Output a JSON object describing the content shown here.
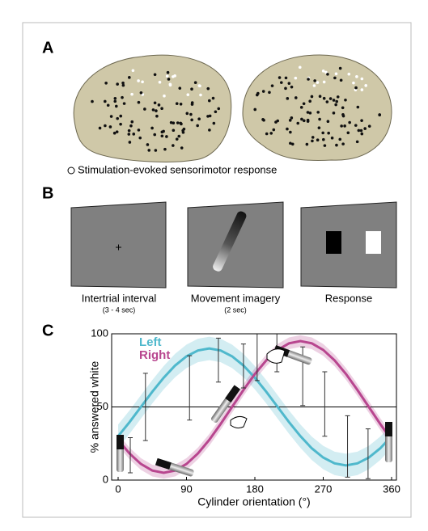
{
  "panels": {
    "A": {
      "label": "A",
      "legend": "Stimulation-evoked sensorimotor response"
    },
    "B": {
      "label": "B",
      "screens": [
        {
          "caption": "Intertrial interval",
          "duration": "(3 - 4 sec)"
        },
        {
          "caption": "Movement imagery",
          "duration": "(2 sec)"
        },
        {
          "caption": "Response"
        }
      ]
    },
    "C": {
      "label": "C"
    }
  },
  "chart_data": {
    "type": "line",
    "xlabel": "Cylinder orientation (°)",
    "ylabel": "% answered white",
    "x": [
      0,
      15,
      30,
      45,
      60,
      75,
      90,
      105,
      120,
      135,
      150,
      165,
      180,
      195,
      210,
      225,
      240,
      255,
      270,
      285,
      300,
      315,
      330,
      345,
      360
    ],
    "series": [
      {
        "name": "Left",
        "color": "#4fb8cc",
        "band": 8,
        "values": [
          30,
          39.6,
          50,
          60.4,
          70,
          78.3,
          84.6,
          88.6,
          90,
          88.6,
          84.6,
          78.3,
          70,
          60.4,
          50,
          39.6,
          30,
          21.7,
          15.4,
          11.4,
          10,
          11.4,
          15.4,
          21.7,
          30
        ]
      },
      {
        "name": "Right",
        "color": "#b8468f",
        "band": 4,
        "values": [
          27.5,
          18.2,
          11,
          6.5,
          5,
          6.5,
          11,
          18.2,
          27.5,
          38.4,
          50,
          61.6,
          72.5,
          81.8,
          89,
          93.5,
          95,
          93.5,
          89,
          81.8,
          72.5,
          61.6,
          50,
          38.4,
          27.5
        ]
      }
    ],
    "error_bars": {
      "x": [
        16,
        36,
        94,
        132,
        165,
        183,
        209,
        243,
        272,
        302,
        329
      ],
      "values": [
        17,
        50,
        63,
        82,
        78,
        84,
        87,
        71,
        52,
        23,
        18
      ],
      "errors": [
        12,
        23,
        22,
        15,
        15,
        16,
        13,
        20,
        22,
        21,
        17
      ]
    },
    "reference_line": 50,
    "xlim": [
      0,
      360
    ],
    "xticks": [
      0,
      90,
      180,
      270,
      360
    ],
    "ylim": [
      0,
      100
    ],
    "yticks": [
      0,
      50,
      100
    ]
  }
}
